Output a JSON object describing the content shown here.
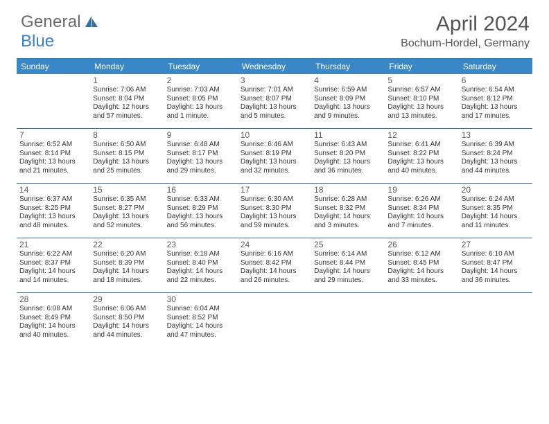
{
  "logo": {
    "text1": "General",
    "text2": "Blue"
  },
  "title": {
    "month": "April 2024",
    "location": "Bochum-Hordel, Germany"
  },
  "colors": {
    "header_bg": "#3a87c8",
    "header_text": "#ffffff",
    "rule": "#2a6fa8",
    "body_text": "#333333",
    "num_text": "#5a5a5a",
    "logo_gray": "#6a6a6a",
    "logo_blue": "#3a7fc4"
  },
  "day_headers": [
    "Sunday",
    "Monday",
    "Tuesday",
    "Wednesday",
    "Thursday",
    "Friday",
    "Saturday"
  ],
  "weeks": [
    [
      null,
      {
        "n": "1",
        "l": [
          "Sunrise: 7:06 AM",
          "Sunset: 8:04 PM",
          "Daylight: 12 hours",
          "and 57 minutes."
        ]
      },
      {
        "n": "2",
        "l": [
          "Sunrise: 7:03 AM",
          "Sunset: 8:05 PM",
          "Daylight: 13 hours",
          "and 1 minute."
        ]
      },
      {
        "n": "3",
        "l": [
          "Sunrise: 7:01 AM",
          "Sunset: 8:07 PM",
          "Daylight: 13 hours",
          "and 5 minutes."
        ]
      },
      {
        "n": "4",
        "l": [
          "Sunrise: 6:59 AM",
          "Sunset: 8:09 PM",
          "Daylight: 13 hours",
          "and 9 minutes."
        ]
      },
      {
        "n": "5",
        "l": [
          "Sunrise: 6:57 AM",
          "Sunset: 8:10 PM",
          "Daylight: 13 hours",
          "and 13 minutes."
        ]
      },
      {
        "n": "6",
        "l": [
          "Sunrise: 6:54 AM",
          "Sunset: 8:12 PM",
          "Daylight: 13 hours",
          "and 17 minutes."
        ]
      }
    ],
    [
      {
        "n": "7",
        "l": [
          "Sunrise: 6:52 AM",
          "Sunset: 8:14 PM",
          "Daylight: 13 hours",
          "and 21 minutes."
        ]
      },
      {
        "n": "8",
        "l": [
          "Sunrise: 6:50 AM",
          "Sunset: 8:15 PM",
          "Daylight: 13 hours",
          "and 25 minutes."
        ]
      },
      {
        "n": "9",
        "l": [
          "Sunrise: 6:48 AM",
          "Sunset: 8:17 PM",
          "Daylight: 13 hours",
          "and 29 minutes."
        ]
      },
      {
        "n": "10",
        "l": [
          "Sunrise: 6:46 AM",
          "Sunset: 8:19 PM",
          "Daylight: 13 hours",
          "and 32 minutes."
        ]
      },
      {
        "n": "11",
        "l": [
          "Sunrise: 6:43 AM",
          "Sunset: 8:20 PM",
          "Daylight: 13 hours",
          "and 36 minutes."
        ]
      },
      {
        "n": "12",
        "l": [
          "Sunrise: 6:41 AM",
          "Sunset: 8:22 PM",
          "Daylight: 13 hours",
          "and 40 minutes."
        ]
      },
      {
        "n": "13",
        "l": [
          "Sunrise: 6:39 AM",
          "Sunset: 8:24 PM",
          "Daylight: 13 hours",
          "and 44 minutes."
        ]
      }
    ],
    [
      {
        "n": "14",
        "l": [
          "Sunrise: 6:37 AM",
          "Sunset: 8:25 PM",
          "Daylight: 13 hours",
          "and 48 minutes."
        ]
      },
      {
        "n": "15",
        "l": [
          "Sunrise: 6:35 AM",
          "Sunset: 8:27 PM",
          "Daylight: 13 hours",
          "and 52 minutes."
        ]
      },
      {
        "n": "16",
        "l": [
          "Sunrise: 6:33 AM",
          "Sunset: 8:29 PM",
          "Daylight: 13 hours",
          "and 56 minutes."
        ]
      },
      {
        "n": "17",
        "l": [
          "Sunrise: 6:30 AM",
          "Sunset: 8:30 PM",
          "Daylight: 13 hours",
          "and 59 minutes."
        ]
      },
      {
        "n": "18",
        "l": [
          "Sunrise: 6:28 AM",
          "Sunset: 8:32 PM",
          "Daylight: 14 hours",
          "and 3 minutes."
        ]
      },
      {
        "n": "19",
        "l": [
          "Sunrise: 6:26 AM",
          "Sunset: 8:34 PM",
          "Daylight: 14 hours",
          "and 7 minutes."
        ]
      },
      {
        "n": "20",
        "l": [
          "Sunrise: 6:24 AM",
          "Sunset: 8:35 PM",
          "Daylight: 14 hours",
          "and 11 minutes."
        ]
      }
    ],
    [
      {
        "n": "21",
        "l": [
          "Sunrise: 6:22 AM",
          "Sunset: 8:37 PM",
          "Daylight: 14 hours",
          "and 14 minutes."
        ]
      },
      {
        "n": "22",
        "l": [
          "Sunrise: 6:20 AM",
          "Sunset: 8:39 PM",
          "Daylight: 14 hours",
          "and 18 minutes."
        ]
      },
      {
        "n": "23",
        "l": [
          "Sunrise: 6:18 AM",
          "Sunset: 8:40 PM",
          "Daylight: 14 hours",
          "and 22 minutes."
        ]
      },
      {
        "n": "24",
        "l": [
          "Sunrise: 6:16 AM",
          "Sunset: 8:42 PM",
          "Daylight: 14 hours",
          "and 26 minutes."
        ]
      },
      {
        "n": "25",
        "l": [
          "Sunrise: 6:14 AM",
          "Sunset: 8:44 PM",
          "Daylight: 14 hours",
          "and 29 minutes."
        ]
      },
      {
        "n": "26",
        "l": [
          "Sunrise: 6:12 AM",
          "Sunset: 8:45 PM",
          "Daylight: 14 hours",
          "and 33 minutes."
        ]
      },
      {
        "n": "27",
        "l": [
          "Sunrise: 6:10 AM",
          "Sunset: 8:47 PM",
          "Daylight: 14 hours",
          "and 36 minutes."
        ]
      }
    ],
    [
      {
        "n": "28",
        "l": [
          "Sunrise: 6:08 AM",
          "Sunset: 8:49 PM",
          "Daylight: 14 hours",
          "and 40 minutes."
        ]
      },
      {
        "n": "29",
        "l": [
          "Sunrise: 6:06 AM",
          "Sunset: 8:50 PM",
          "Daylight: 14 hours",
          "and 44 minutes."
        ]
      },
      {
        "n": "30",
        "l": [
          "Sunrise: 6:04 AM",
          "Sunset: 8:52 PM",
          "Daylight: 14 hours",
          "and 47 minutes."
        ]
      },
      null,
      null,
      null,
      null
    ]
  ]
}
